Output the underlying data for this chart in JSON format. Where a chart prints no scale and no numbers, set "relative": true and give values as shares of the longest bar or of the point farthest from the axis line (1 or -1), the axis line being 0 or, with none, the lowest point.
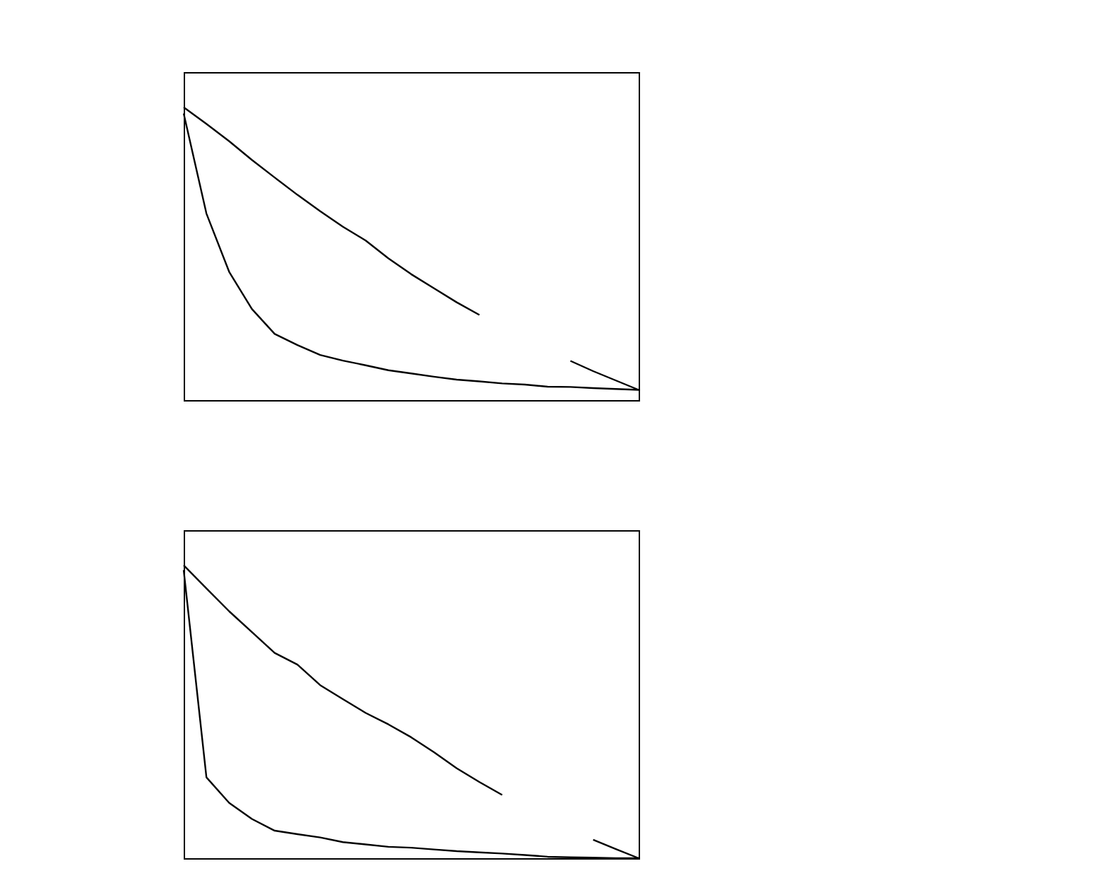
{
  "chart_data": [
    {
      "type": "line",
      "relative": true,
      "categories": [
        null,
        null,
        null,
        null,
        null,
        null,
        null,
        null,
        null,
        null,
        null,
        null,
        null,
        null,
        null,
        null,
        null,
        null,
        null,
        null,
        null
      ],
      "series": [
        {
          "color": "#000000",
          "values": [
            1,
            0.943,
            0.884,
            0.82,
            0.76,
            0.701,
            0.645,
            0.592,
            0.545,
            0.484,
            0.43,
            0.382,
            0.334,
            0.291,
            null,
            null,
            null,
            0.134,
            0.099,
            0.067,
            0.035
          ]
        },
        {
          "color": "#000000",
          "values": [
            0.979,
            0.637,
            0.438,
            0.311,
            0.226,
            0.188,
            0.154,
            0.135,
            0.119,
            0.102,
            0.091,
            0.08,
            0.07,
            0.064,
            0.057,
            0.053,
            0.046,
            0.045,
            0.041,
            0.038,
            0.035
          ]
        }
      ]
    },
    {
      "type": "line",
      "relative": true,
      "categories": [
        null,
        null,
        null,
        null,
        null,
        null,
        null,
        null,
        null,
        null,
        null,
        null,
        null,
        null,
        null,
        null,
        null,
        null,
        null,
        null,
        null
      ],
      "series": [
        {
          "color": "#000000",
          "values": [
            1,
            0.921,
            0.843,
            0.772,
            0.701,
            0.661,
            0.591,
            0.543,
            0.496,
            0.457,
            0.413,
            0.362,
            0.307,
            0.26,
            0.216,
            null,
            null,
            null,
            0.063,
            0.031,
            0
          ]
        },
        {
          "color": "#000000",
          "values": [
            0.984,
            0.276,
            0.189,
            0.134,
            0.094,
            0.082,
            0.071,
            0.055,
            0.047,
            0.039,
            0.036,
            0.03,
            0.024,
            0.02,
            0.016,
            0.011,
            0.005,
            0.003,
            0.002,
            0,
            0
          ]
        }
      ]
    }
  ]
}
